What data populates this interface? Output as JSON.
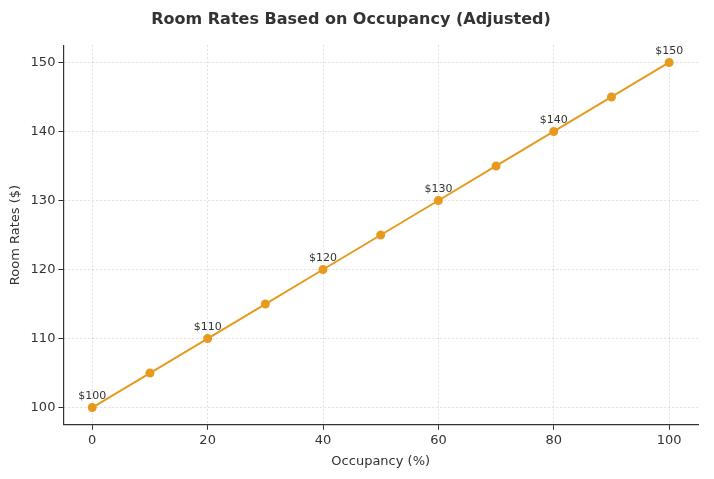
{
  "chart_data": {
    "type": "line",
    "title": "Room Rates Based on Occupancy (Adjusted)",
    "x_label": "Occupancy (%)",
    "y_label": "Room Rates ($)",
    "x": [
      0,
      10,
      20,
      30,
      40,
      50,
      60,
      70,
      80,
      90,
      100
    ],
    "values": [
      100,
      105,
      110,
      115,
      120,
      125,
      130,
      135,
      140,
      145,
      150
    ],
    "value_labels": [
      "$100",
      null,
      "$110",
      null,
      "$120",
      null,
      "$130",
      null,
      "$140",
      null,
      "$150"
    ],
    "data_labels": true,
    "color": "#e69a1e",
    "marker": "circle",
    "line_style": "solid",
    "xlim": [
      -5,
      105
    ],
    "xticks": [
      0,
      20,
      40,
      60,
      80,
      100
    ],
    "ylim": [
      97.5,
      152.5
    ],
    "yticks": [
      100,
      110,
      120,
      130,
      140,
      150
    ],
    "grid": true
  }
}
